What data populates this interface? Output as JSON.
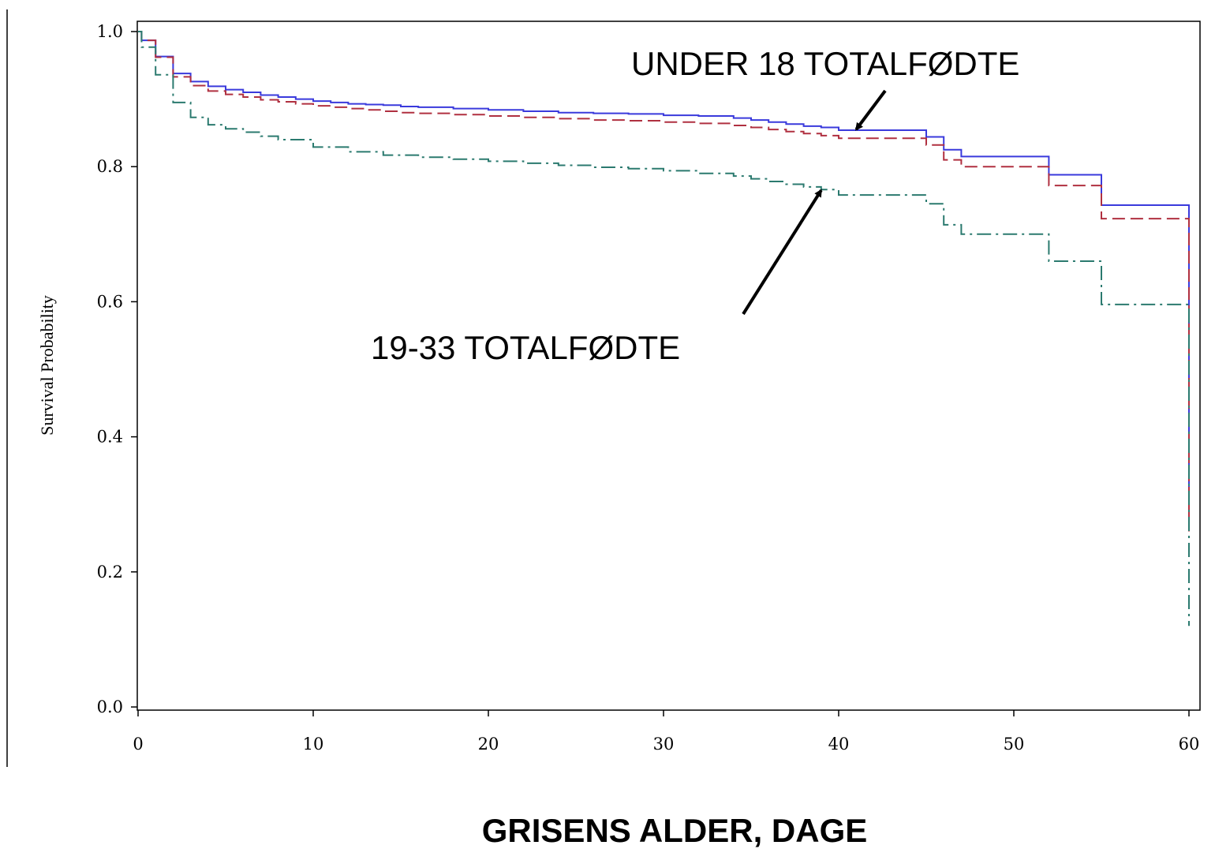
{
  "chart_data": {
    "type": "line",
    "step": true,
    "title": "",
    "xlabel": "GRISENS ALDER, DAGE",
    "ylabel": "Survival Probability",
    "xlim": [
      0,
      60
    ],
    "ylim": [
      0,
      1.0
    ],
    "x_ticks": [
      "0",
      "10",
      "20",
      "30",
      "40",
      "50",
      "60"
    ],
    "y_ticks": [
      "0.0",
      "0.2",
      "0.4",
      "0.6",
      "0.8",
      "1.0"
    ],
    "x_tick_values": [
      0,
      10,
      20,
      30,
      40,
      50,
      60
    ],
    "y_tick_values": [
      0,
      0.2,
      0.4,
      0.6,
      0.8,
      1.0
    ],
    "grid": false,
    "annotations": [
      {
        "text": "UNDER 18 TOTALFØDTE",
        "points_to": {
          "x": 41,
          "y": 0.855
        }
      },
      {
        "text": "19-33 TOTALFØDTE",
        "points_to": {
          "x": 39,
          "y": 0.765
        }
      }
    ],
    "series": [
      {
        "color": "#3a3adc",
        "dash": "solid",
        "x": [
          0,
          0.2,
          1,
          2,
          3,
          4,
          5,
          6,
          7,
          8,
          9,
          10,
          11,
          12,
          13,
          14,
          15,
          16,
          18,
          20,
          22,
          24,
          26,
          28,
          30,
          32,
          34,
          35,
          36,
          37,
          38,
          39,
          40,
          45,
          46,
          47,
          52,
          55,
          60,
          60
        ],
        "y": [
          1.0,
          0.987,
          0.963,
          0.938,
          0.926,
          0.919,
          0.914,
          0.91,
          0.906,
          0.903,
          0.9,
          0.897,
          0.895,
          0.893,
          0.892,
          0.891,
          0.889,
          0.888,
          0.886,
          0.884,
          0.882,
          0.88,
          0.879,
          0.878,
          0.876,
          0.875,
          0.872,
          0.869,
          0.866,
          0.863,
          0.86,
          0.858,
          0.854,
          0.844,
          0.825,
          0.815,
          0.788,
          0.743,
          0.743,
          0.29
        ]
      },
      {
        "color": "#b03040",
        "dash": "dashed",
        "x": [
          0,
          0.2,
          1,
          2,
          3,
          4,
          5,
          6,
          7,
          8,
          9,
          10,
          11,
          12,
          13,
          14,
          15,
          16,
          18,
          20,
          22,
          24,
          26,
          28,
          30,
          32,
          34,
          35,
          36,
          37,
          38,
          39,
          40,
          45,
          46,
          47,
          52,
          55,
          60,
          60
        ],
        "y": [
          1.0,
          0.987,
          0.962,
          0.933,
          0.92,
          0.912,
          0.907,
          0.903,
          0.899,
          0.896,
          0.893,
          0.89,
          0.888,
          0.886,
          0.884,
          0.882,
          0.88,
          0.879,
          0.877,
          0.875,
          0.873,
          0.871,
          0.869,
          0.868,
          0.866,
          0.864,
          0.861,
          0.858,
          0.855,
          0.852,
          0.849,
          0.846,
          0.842,
          0.832,
          0.81,
          0.8,
          0.772,
          0.723,
          0.723,
          0.26
        ]
      },
      {
        "color": "#2b7a6f",
        "dash": "dashdot",
        "x": [
          0,
          0.2,
          1,
          2,
          3,
          4,
          5,
          6,
          7,
          8,
          10,
          12,
          14,
          16,
          18,
          20,
          22,
          24,
          26,
          28,
          30,
          32,
          34,
          35,
          36,
          37,
          38,
          39,
          40,
          45,
          46,
          47,
          52,
          55,
          60,
          60
        ],
        "y": [
          1.0,
          0.977,
          0.936,
          0.895,
          0.873,
          0.862,
          0.856,
          0.851,
          0.845,
          0.84,
          0.829,
          0.822,
          0.817,
          0.814,
          0.811,
          0.808,
          0.805,
          0.802,
          0.799,
          0.797,
          0.794,
          0.79,
          0.786,
          0.782,
          0.778,
          0.774,
          0.77,
          0.766,
          0.758,
          0.745,
          0.714,
          0.7,
          0.66,
          0.596,
          0.596,
          0.12
        ]
      }
    ]
  }
}
